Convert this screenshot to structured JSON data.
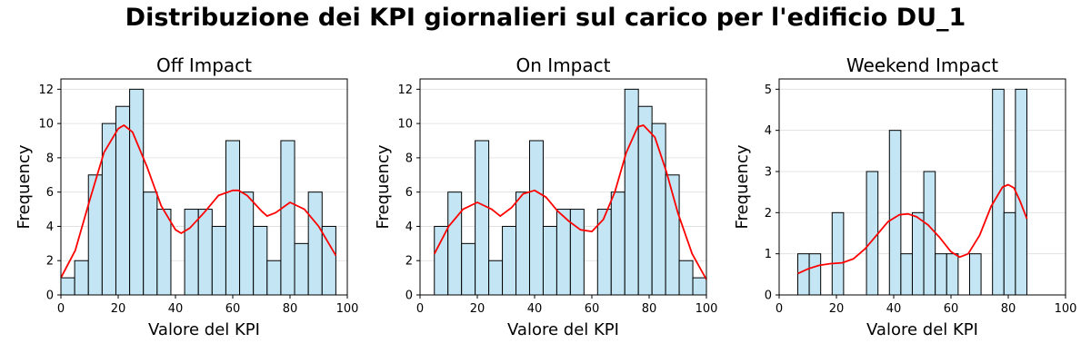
{
  "figure": {
    "title": "Distribuzione dei KPI giornalieri sul carico per l'edificio DU_1"
  },
  "colors": {
    "bar_fill": "#c4e6f4",
    "bar_edge": "#000000",
    "kde": "#ff0000",
    "grid": "#dddddd"
  },
  "chart_data": [
    {
      "type": "bar",
      "title": "Off Impact",
      "xlabel": "Valore del KPI",
      "ylabel": "Frequency",
      "xlim": [
        0,
        100
      ],
      "ylim": [
        0,
        12.6
      ],
      "xticks": [
        0,
        20,
        40,
        60,
        80,
        100
      ],
      "yticks": [
        0,
        2,
        4,
        6,
        8,
        10,
        12
      ],
      "grid": "y",
      "bin_edges": [
        0,
        4.8,
        9.6,
        14.4,
        19.2,
        24,
        28.8,
        33.6,
        38.4,
        43.2,
        48,
        52.8,
        57.6,
        62.4,
        67.2,
        72,
        76.8,
        81.6,
        86.4,
        91.2,
        96
      ],
      "values": [
        1,
        2,
        7,
        10,
        11,
        12,
        6,
        5,
        0,
        5,
        5,
        4,
        9,
        6,
        4,
        2,
        9,
        3,
        6,
        4
      ],
      "kde": {
        "x": [
          0,
          5,
          10,
          15,
          20,
          22,
          25,
          30,
          35,
          40,
          42,
          45,
          50,
          55,
          60,
          62,
          65,
          70,
          72,
          75,
          80,
          85,
          90,
          96
        ],
        "y": [
          1.0,
          2.6,
          5.5,
          8.3,
          9.7,
          9.9,
          9.5,
          7.5,
          5.2,
          3.8,
          3.6,
          3.9,
          4.8,
          5.8,
          6.1,
          6.1,
          5.8,
          4.9,
          4.6,
          4.8,
          5.4,
          5.0,
          4.0,
          2.3
        ]
      }
    },
    {
      "type": "bar",
      "title": "On Impact",
      "xlabel": "Valore del KPI",
      "ylabel": "Frequency",
      "xlim": [
        0,
        100
      ],
      "ylim": [
        0,
        12.6
      ],
      "xticks": [
        0,
        20,
        40,
        60,
        80,
        100
      ],
      "yticks": [
        0,
        2,
        4,
        6,
        8,
        10,
        12
      ],
      "grid": "y",
      "bin_edges": [
        5,
        9.75,
        14.5,
        19.25,
        24,
        28.75,
        33.5,
        38.25,
        43,
        47.75,
        52.5,
        57.25,
        62,
        66.75,
        71.5,
        76.25,
        81,
        85.75,
        90.5,
        95.25,
        100
      ],
      "values": [
        4,
        6,
        3,
        9,
        2,
        4,
        6,
        9,
        4,
        5,
        5,
        0,
        5,
        6,
        12,
        11,
        10,
        7,
        2,
        1
      ],
      "kde": {
        "x": [
          5,
          10,
          15,
          20,
          25,
          28,
          32,
          36,
          40,
          44,
          48,
          52,
          56,
          60,
          64,
          68,
          72,
          76,
          78,
          82,
          86,
          90,
          95,
          100
        ],
        "y": [
          2.4,
          4.0,
          5.0,
          5.4,
          5.0,
          4.6,
          5.1,
          5.9,
          6.1,
          5.7,
          4.9,
          4.3,
          3.8,
          3.7,
          4.4,
          6.0,
          8.3,
          9.8,
          9.9,
          9.2,
          7.2,
          4.8,
          2.4,
          0.9
        ]
      }
    },
    {
      "type": "bar",
      "title": "Weekend Impact",
      "xlabel": "Valore del KPI",
      "ylabel": "Frequency",
      "xlim": [
        0,
        100
      ],
      "ylim": [
        0,
        5.25
      ],
      "xticks": [
        0,
        20,
        40,
        60,
        80,
        100
      ],
      "yticks": [
        0,
        1,
        2,
        3,
        4,
        5
      ],
      "grid": "y",
      "bin_edges": [
        6.5,
        10.5,
        14.5,
        18.5,
        22.5,
        26.5,
        30.5,
        34.5,
        38.5,
        42.5,
        46.5,
        50.5,
        54.5,
        58.5,
        62.5,
        66.5,
        70.5,
        74.5,
        78.5,
        82.5,
        86.5
      ],
      "values": [
        1,
        1,
        0,
        2,
        0,
        0,
        3,
        0,
        4,
        1,
        2,
        3,
        1,
        1,
        0,
        1,
        0,
        5,
        2,
        5
      ],
      "kde": {
        "x": [
          6.5,
          10,
          14,
          18,
          22,
          26,
          30,
          34,
          38,
          42,
          45,
          48,
          52,
          56,
          60,
          63,
          66,
          70,
          74,
          78,
          80,
          82,
          84,
          86.5
        ],
        "y": [
          0.52,
          0.63,
          0.72,
          0.76,
          0.78,
          0.88,
          1.12,
          1.45,
          1.78,
          1.95,
          1.97,
          1.9,
          1.7,
          1.4,
          1.05,
          0.92,
          1.0,
          1.45,
          2.15,
          2.62,
          2.68,
          2.6,
          2.3,
          1.85
        ]
      }
    }
  ]
}
